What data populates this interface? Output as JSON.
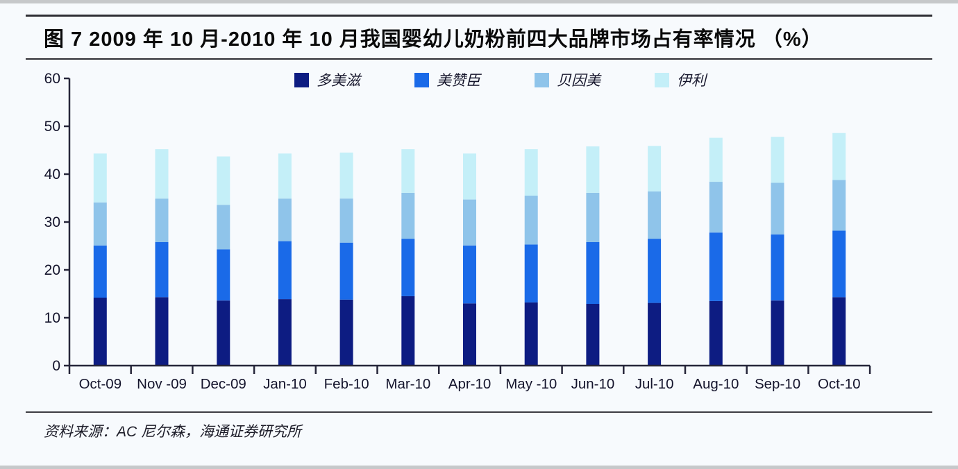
{
  "page": {
    "title": "图 7   2009 年 10 月-2010 年 10 月我国婴幼儿奶粉前四大品牌市场占有率情况 （%）",
    "source": "资料来源：AC 尼尔森，海通证券研究所"
  },
  "colors": {
    "series_navy": "#0D1C82",
    "series_blue": "#1A6AE8",
    "series_light_blue": "#8FC4EA",
    "series_pale_cyan": "#C4EFF8",
    "axis": "#26263a",
    "tick_text": "#14142c",
    "rule": "#2e2e34",
    "background": "#f7fafd",
    "edge_strip": "#c6c8ca"
  },
  "chart_data": {
    "type": "bar",
    "stacked": true,
    "title": "图 7  2009 年 10 月-2010 年 10 月我国婴幼儿奶粉前四大品牌市场占有率情况 （%）",
    "xlabel": "",
    "ylabel": "",
    "ylim": [
      0,
      60
    ],
    "yticks": [
      0,
      10,
      20,
      30,
      40,
      50,
      60
    ],
    "grid": false,
    "legend_position": "top",
    "categories": [
      "Oct-09",
      "Nov -09",
      "Dec-09",
      "Jan-10",
      "Feb-10",
      "Mar-10",
      "Apr-10",
      "May -10",
      "Jun-10",
      "Jul-10",
      "Aug-10",
      "Sep-10",
      "Oct-10"
    ],
    "series": [
      {
        "name": "多美滋",
        "color": "#0D1C82",
        "values": [
          14.2,
          14.3,
          13.6,
          13.9,
          13.8,
          14.5,
          13.0,
          13.2,
          12.9,
          13.1,
          13.5,
          13.6,
          14.3
        ]
      },
      {
        "name": "美赞臣",
        "color": "#1A6AE8",
        "values": [
          10.9,
          11.5,
          10.7,
          12.1,
          11.9,
          12.0,
          12.1,
          12.1,
          12.9,
          13.4,
          14.3,
          13.8,
          13.9
        ]
      },
      {
        "name": "贝因美",
        "color": "#8FC4EA",
        "values": [
          9.0,
          9.1,
          9.3,
          8.9,
          9.2,
          9.6,
          9.6,
          10.2,
          10.3,
          9.9,
          10.6,
          10.8,
          10.6
        ]
      },
      {
        "name": "伊利",
        "color": "#C4EFF8",
        "values": [
          10.2,
          10.3,
          10.1,
          9.4,
          9.6,
          9.1,
          9.6,
          9.7,
          9.7,
          9.5,
          9.2,
          9.6,
          9.8
        ]
      }
    ]
  }
}
